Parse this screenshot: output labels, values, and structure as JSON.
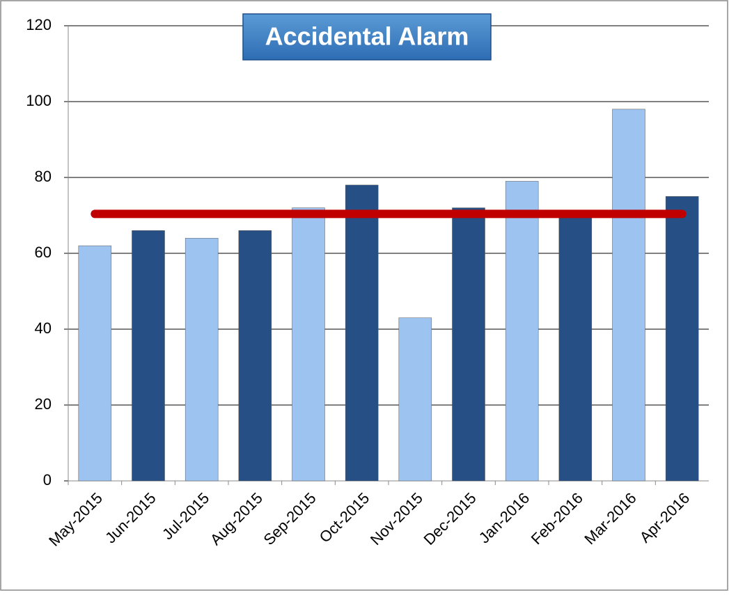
{
  "chart_data": {
    "type": "bar",
    "title": "Accidental Alarm",
    "categories": [
      "May-2015",
      "Jun-2015",
      "Jul-2015",
      "Aug-2015",
      "Sep-2015",
      "Oct-2015",
      "Nov-2015",
      "Dec-2015",
      "Jan-2016",
      "Feb-2016",
      "Mar-2016",
      "Apr-2016"
    ],
    "values": [
      62,
      66,
      64,
      66,
      72,
      78,
      43,
      72,
      79,
      70,
      98,
      75
    ],
    "colors": [
      "#9dc3f0",
      "#254f85",
      "#9dc3f0",
      "#254f85",
      "#9dc3f0",
      "#254f85",
      "#9dc3f0",
      "#254f85",
      "#9dc3f0",
      "#254f85",
      "#9dc3f0",
      "#254f85"
    ],
    "average": 70.4,
    "average_color": "#c00000",
    "ylim": [
      0,
      120
    ],
    "yticks": [
      0,
      20,
      40,
      60,
      80,
      100,
      120
    ],
    "grid": true
  }
}
